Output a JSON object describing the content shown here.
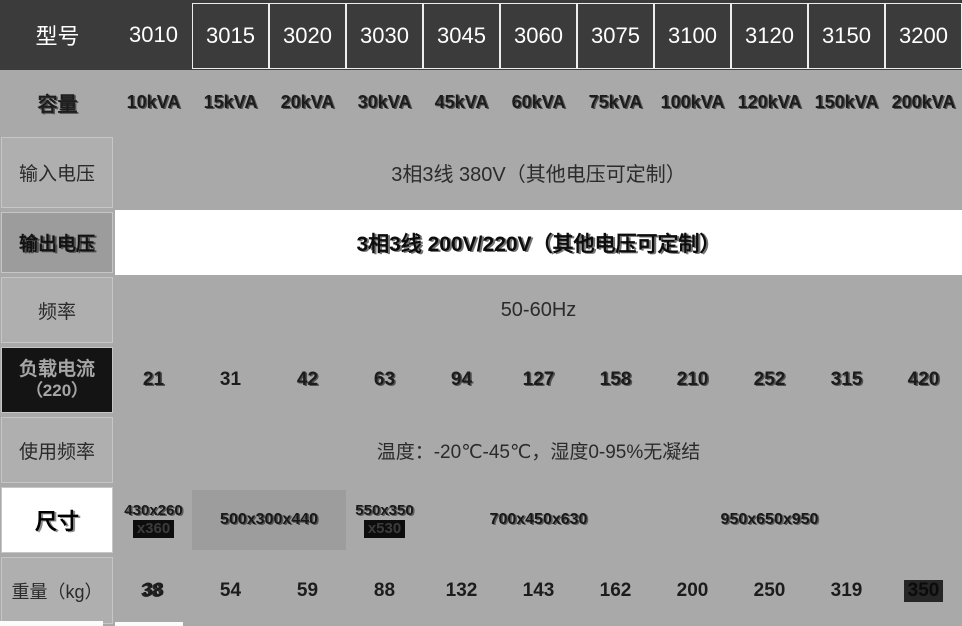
{
  "table": {
    "header": {
      "label": "型号",
      "models": [
        "3010",
        "3015",
        "3020",
        "3030",
        "3045",
        "3060",
        "3075",
        "3100",
        "3120",
        "3150",
        "3200"
      ]
    },
    "capacity": {
      "label": "容量",
      "values": [
        "10kVA",
        "15kVA",
        "20kVA",
        "30kVA",
        "45kVA",
        "60kVA",
        "75kVA",
        "100kVA",
        "120kVA",
        "150kVA",
        "200kVA"
      ]
    },
    "input_voltage": {
      "label": "输入电压",
      "value": "3相3线 380V（其他电压可定制）"
    },
    "output_voltage": {
      "label": "输出电压",
      "value": "3相3线 200V/220V（其他电压可定制）"
    },
    "frequency": {
      "label": "频率",
      "value": "50-60Hz"
    },
    "load_current": {
      "label_line1": "负载电流",
      "label_line2": "（220）",
      "values": [
        "21",
        "31",
        "42",
        "63",
        "94",
        "127",
        "158",
        "210",
        "252",
        "315",
        "420"
      ]
    },
    "environment": {
      "label": "使用频率",
      "value": "温度：-20℃-45℃，湿度0-95%无凝结"
    },
    "dimensions": {
      "label": "尺寸",
      "items": [
        {
          "line1": "430x260",
          "line2": "x360"
        },
        {
          "text": "500x300x440"
        },
        {
          "line1": "550x350",
          "line2": "x530"
        },
        {
          "text": "700x450x630"
        },
        {
          "text": "950x650x950"
        }
      ]
    },
    "weight": {
      "label": "重量（kg）",
      "values": [
        "38",
        "54",
        "59",
        "88",
        "132",
        "143",
        "162",
        "200",
        "250",
        "319",
        "350"
      ]
    }
  },
  "colors": {
    "header_bg": "#3b3b3b",
    "body_bg": "#a9a9a9",
    "highlight_white": "#ffffff",
    "ghost_black": "#141414"
  }
}
